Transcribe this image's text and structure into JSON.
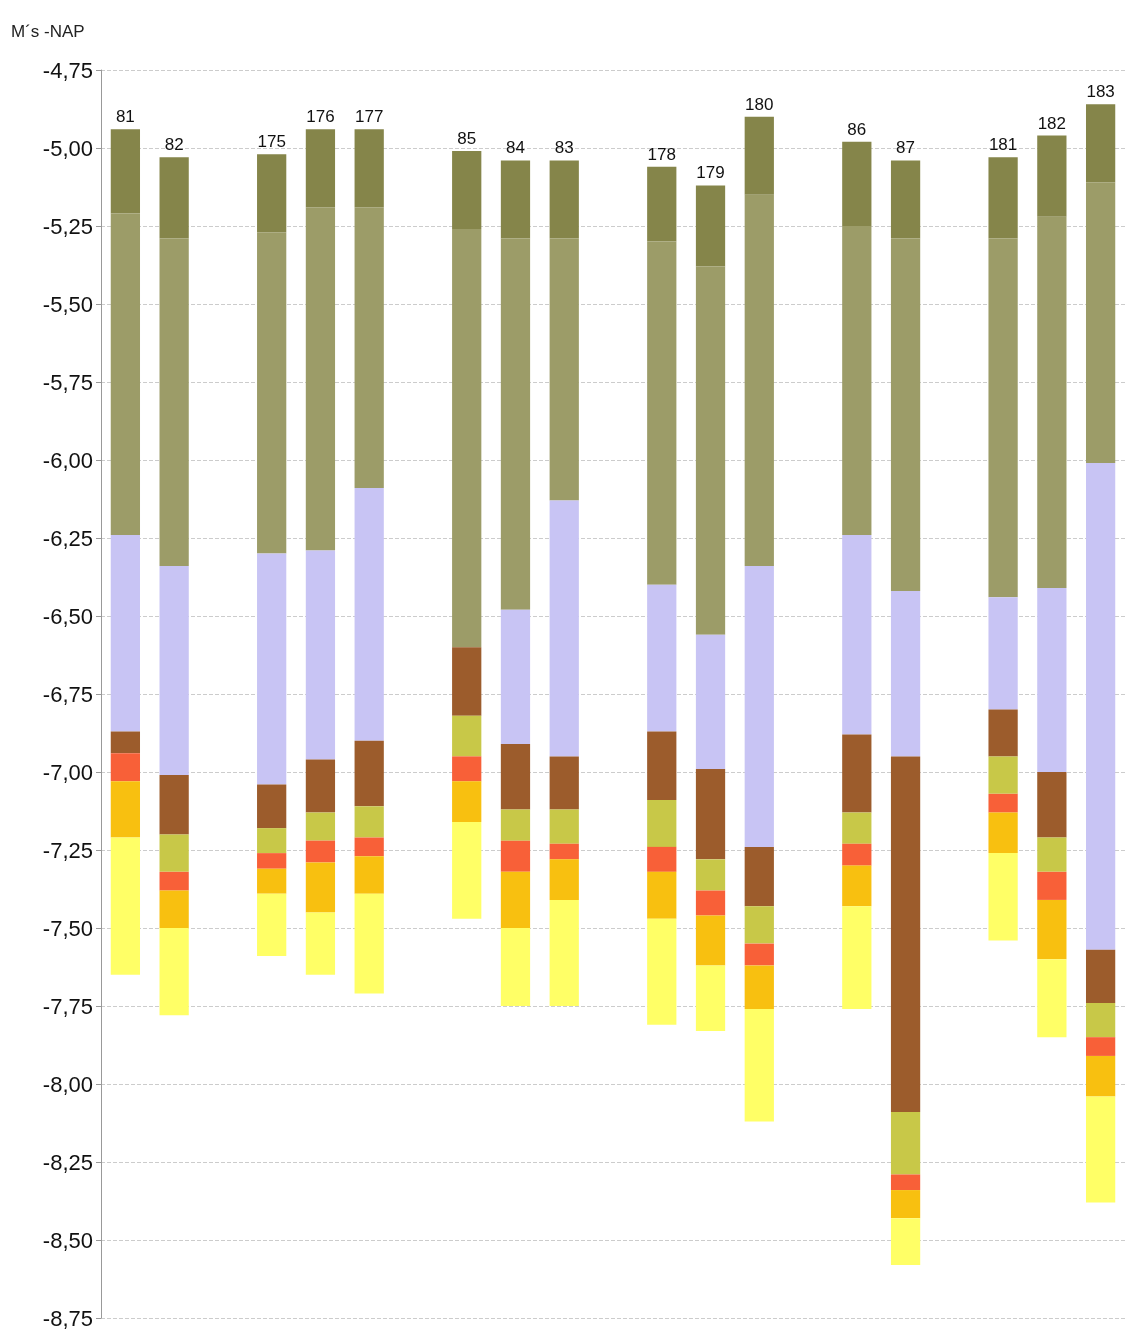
{
  "chart_data": {
    "type": "bar",
    "ylabel": "M´s -NAP",
    "categories": [
      "81",
      "82",
      null,
      "175",
      "176",
      "177",
      null,
      "85",
      "84",
      "83",
      null,
      "178",
      "179",
      "180",
      null,
      "86",
      "87",
      null,
      "181",
      "182",
      "183"
    ],
    "series": [
      {
        "color": "#85854a",
        "base": [
          -4.94,
          -5.03,
          null,
          -5.02,
          -4.94,
          -4.94,
          null,
          -5.01,
          -5.04,
          -5.04,
          null,
          -5.06,
          -5.12,
          -4.9,
          null,
          -4.98,
          -5.04,
          null,
          -5.03,
          -4.96,
          -4.86
        ],
        "values": [
          -0.27,
          -0.26,
          null,
          -0.25,
          -0.25,
          -0.25,
          null,
          -0.25,
          -0.25,
          -0.25,
          null,
          -0.24,
          -0.26,
          -0.25,
          null,
          -0.27,
          -0.25,
          null,
          -0.26,
          -0.26,
          -0.25
        ]
      },
      {
        "color": "#9c9c68",
        "base": [
          -5.21,
          -5.29,
          null,
          -5.27,
          -5.19,
          -5.19,
          null,
          -5.26,
          -5.29,
          -5.29,
          null,
          -5.3,
          -5.38,
          -5.15,
          null,
          -5.25,
          -5.29,
          null,
          -5.29,
          -5.22,
          -5.11
        ],
        "values": [
          -1.03,
          -1.05,
          null,
          -1.03,
          -1.1,
          -0.9,
          null,
          -1.34,
          -1.19,
          -0.84,
          null,
          -1.1,
          -1.18,
          -1.19,
          null,
          -0.99,
          -1.13,
          null,
          -1.15,
          -1.19,
          -0.9
        ]
      },
      {
        "color": "#c8c4f4",
        "base": [
          -6.24,
          -6.34,
          null,
          -6.3,
          -6.29,
          -6.09,
          null,
          null,
          -6.48,
          -6.13,
          null,
          -6.4,
          -6.56,
          -6.34,
          null,
          -6.24,
          -6.42,
          null,
          -6.44,
          -6.41,
          -6.01
        ],
        "values": [
          -0.63,
          -0.67,
          null,
          -0.74,
          -0.67,
          -0.81,
          null,
          null,
          -0.43,
          -0.82,
          null,
          -0.47,
          -0.43,
          -0.9,
          null,
          -0.64,
          -0.53,
          null,
          -0.36,
          -0.59,
          -1.56
        ]
      },
      {
        "color": "#9c5c2c",
        "base": [
          -6.87,
          -7.01,
          null,
          -7.04,
          -6.96,
          -6.9,
          null,
          -6.6,
          -6.91,
          -6.95,
          null,
          -6.87,
          -6.99,
          -7.24,
          null,
          -6.88,
          -6.95,
          null,
          -6.8,
          -7.0,
          -7.57
        ],
        "values": [
          -0.07,
          -0.19,
          null,
          -0.14,
          -0.17,
          -0.21,
          null,
          -0.22,
          -0.21,
          -0.17,
          null,
          -0.22,
          -0.29,
          -0.19,
          null,
          -0.25,
          -1.14,
          null,
          -0.15,
          -0.21,
          -0.17
        ]
      },
      {
        "color": "#c8c848",
        "base": [
          null,
          -7.2,
          null,
          -7.18,
          -7.13,
          -7.11,
          null,
          -6.82,
          -7.12,
          -7.12,
          null,
          -7.09,
          -7.28,
          -7.43,
          null,
          -7.13,
          -8.09,
          null,
          -6.95,
          -7.21,
          -7.74
        ],
        "values": [
          null,
          -0.12,
          null,
          -0.08,
          -0.09,
          -0.1,
          null,
          -0.13,
          -0.1,
          -0.11,
          null,
          -0.15,
          -0.1,
          -0.12,
          null,
          -0.1,
          -0.2,
          null,
          -0.12,
          -0.11,
          -0.11
        ]
      },
      {
        "color": "#f86038",
        "base": [
          -6.94,
          -7.32,
          null,
          -7.26,
          -7.22,
          -7.21,
          null,
          -6.95,
          -7.22,
          -7.23,
          null,
          -7.24,
          -7.38,
          -7.55,
          null,
          -7.23,
          -8.29,
          null,
          -7.07,
          -7.32,
          -7.85
        ],
        "values": [
          -0.09,
          -0.06,
          null,
          -0.05,
          -0.07,
          -0.06,
          null,
          -0.08,
          -0.1,
          -0.05,
          null,
          -0.08,
          -0.08,
          -0.07,
          null,
          -0.07,
          -0.05,
          null,
          -0.06,
          -0.09,
          -0.06
        ]
      },
      {
        "color": "#f8c010",
        "base": [
          -7.03,
          -7.38,
          null,
          -7.31,
          -7.29,
          -7.27,
          null,
          -7.03,
          -7.32,
          -7.28,
          null,
          -7.32,
          -7.46,
          -7.62,
          null,
          -7.3,
          -8.34,
          null,
          -7.13,
          -7.41,
          -7.91
        ],
        "values": [
          -0.18,
          -0.12,
          null,
          -0.08,
          -0.16,
          -0.12,
          null,
          -0.13,
          -0.18,
          -0.13,
          null,
          -0.15,
          -0.16,
          -0.14,
          null,
          -0.13,
          -0.09,
          null,
          -0.13,
          -0.19,
          -0.13
        ]
      },
      {
        "color": "#ffff66",
        "base": [
          -7.21,
          -7.5,
          null,
          -7.39,
          -7.45,
          -7.39,
          null,
          -7.16,
          -7.5,
          -7.41,
          null,
          -7.47,
          -7.62,
          -7.76,
          null,
          -7.43,
          -8.43,
          null,
          -7.26,
          -7.6,
          -8.04
        ],
        "values": [
          -0.44,
          -0.28,
          null,
          -0.2,
          -0.2,
          -0.32,
          null,
          -0.31,
          -0.25,
          -0.34,
          null,
          -0.34,
          -0.21,
          -0.36,
          null,
          -0.33,
          -0.15,
          null,
          -0.28,
          -0.25,
          -0.34
        ]
      }
    ],
    "ylim": [
      -8.75,
      -4.75
    ],
    "yticks": [
      {
        "value": -4.75,
        "label": "-4,75"
      },
      {
        "value": -5.0,
        "label": "-5,00"
      },
      {
        "value": -5.25,
        "label": "-5,25"
      },
      {
        "value": -5.5,
        "label": "-5,50"
      },
      {
        "value": -5.75,
        "label": "-5,75"
      },
      {
        "value": -6.0,
        "label": "-6,00"
      },
      {
        "value": -6.25,
        "label": "-6,25"
      },
      {
        "value": -6.5,
        "label": "-6,50"
      },
      {
        "value": -6.75,
        "label": "-6,75"
      },
      {
        "value": -7.0,
        "label": "-7,00"
      },
      {
        "value": -7.25,
        "label": "-7,25"
      },
      {
        "value": -7.5,
        "label": "-7,50"
      },
      {
        "value": -7.75,
        "label": "-7,75"
      },
      {
        "value": -8.0,
        "label": "-8,00"
      },
      {
        "value": -8.25,
        "label": "-8,25"
      },
      {
        "value": -8.5,
        "label": "-8,50"
      },
      {
        "value": -8.75,
        "label": "-8,75"
      }
    ],
    "grid": "y"
  }
}
